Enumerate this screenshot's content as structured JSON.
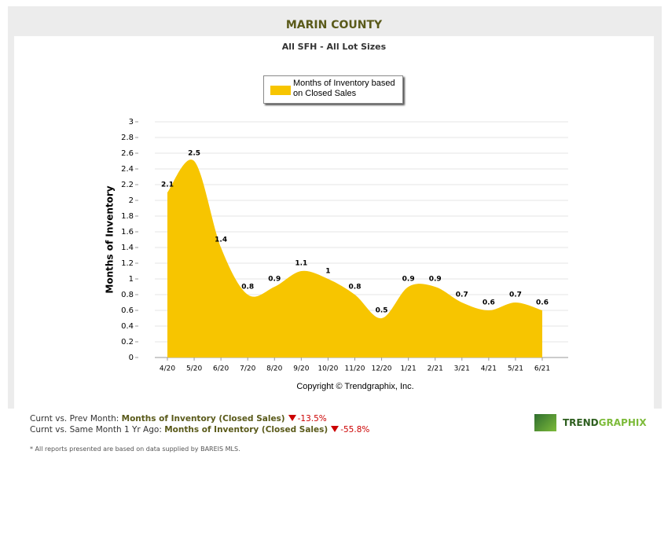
{
  "chart_data": {
    "type": "area",
    "title": "MARIN COUNTY",
    "subtitle": "All SFH - All Lot Sizes",
    "y_label": "Months of Inventory",
    "caption": "Copyright © Trendgraphix, Inc.",
    "categories": [
      "4/20",
      "5/20",
      "6/20",
      "7/20",
      "8/20",
      "9/20",
      "10/20",
      "11/20",
      "12/20",
      "1/21",
      "2/21",
      "3/21",
      "4/21",
      "5/21",
      "6/21"
    ],
    "series": [
      {
        "name": "Months of Inventory based on Closed Sales",
        "color": "#f7c500",
        "values": [
          2.1,
          2.5,
          1.4,
          0.8,
          0.9,
          1.1,
          1,
          0.8,
          0.5,
          0.9,
          0.9,
          0.7,
          0.6,
          0.7,
          0.6
        ]
      }
    ],
    "ylim": [
      0,
      3
    ],
    "yticks": [
      0,
      0.2,
      0.4,
      0.6,
      0.8,
      1,
      1.2,
      1.4,
      1.6,
      1.8,
      2,
      2.2,
      2.4,
      2.6,
      2.8,
      3
    ],
    "grid": true,
    "smooth": true,
    "legend": "top"
  },
  "footer": {
    "rows": [
      {
        "prefix": "Curnt vs. Prev Month:",
        "metric": "Months of Inventory (Closed Sales)",
        "change": "-13.5%"
      },
      {
        "prefix": "Curnt vs. Same Month 1 Yr Ago:",
        "metric": "Months of Inventory (Closed Sales)",
        "change": "-55.8%"
      }
    ],
    "note": "* All reports presented are based on data supplied by BAREIS MLS.",
    "logo": {
      "left": "TREND",
      "right": "GRAPHIX"
    }
  }
}
